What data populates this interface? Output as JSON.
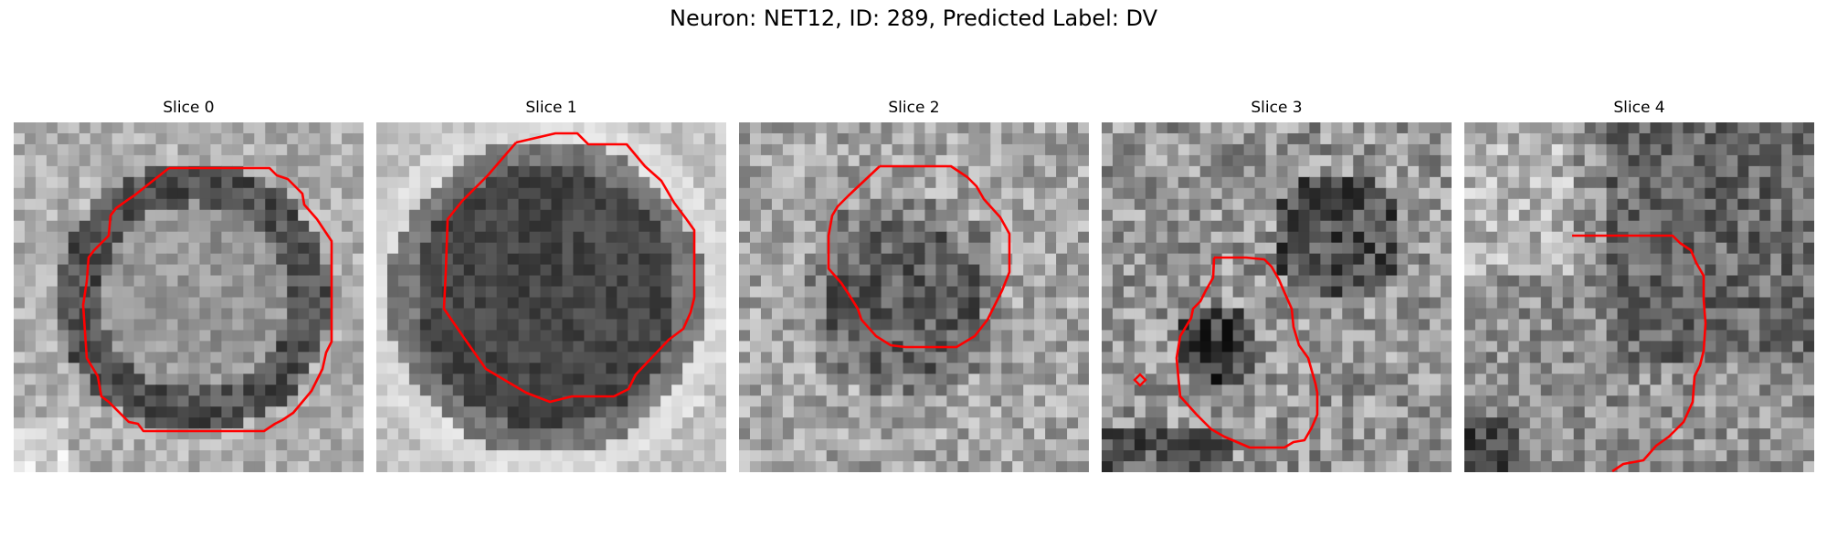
{
  "title": "Neuron: NET12, ID: 289, Predicted Label: DV",
  "contour_color": "#ff0000",
  "panels": [
    {
      "label": "Slice 0",
      "cell_tone": "ring",
      "seed": 11
    },
    {
      "label": "Slice 1",
      "cell_tone": "dark",
      "seed": 23
    },
    {
      "label": "Slice 2",
      "cell_tone": "mid",
      "seed": 37
    },
    {
      "label": "Slice 3",
      "cell_tone": "mixed",
      "seed": 41
    },
    {
      "label": "Slice 4",
      "cell_tone": "mixed",
      "seed": 53
    }
  ]
}
